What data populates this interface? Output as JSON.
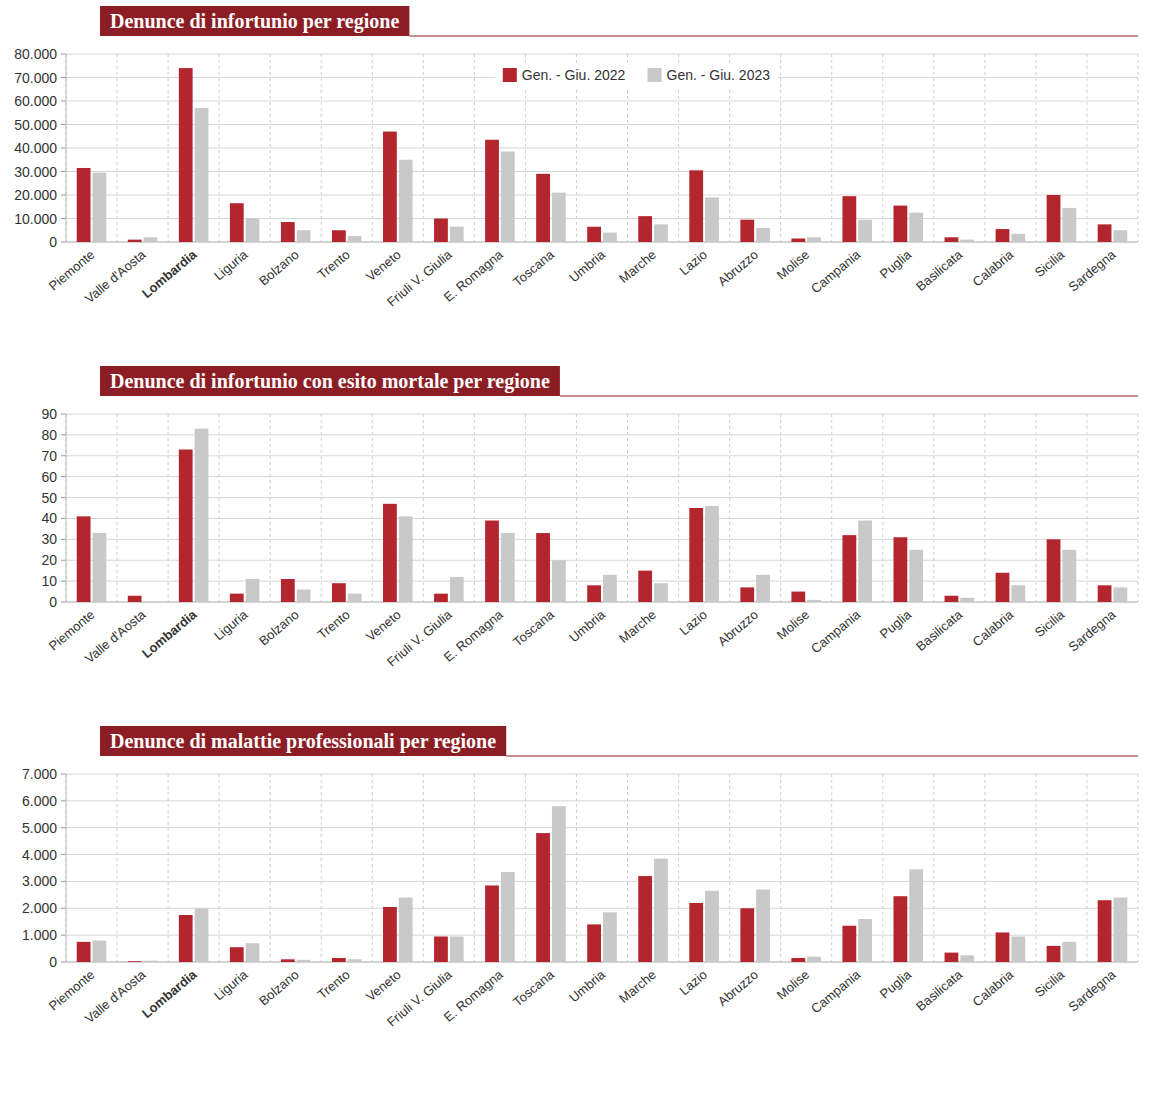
{
  "chart_data": [
    {
      "type": "bar",
      "title": "Denunce di infortunio per regione",
      "categories": [
        "Piemonte",
        "Valle d'Aosta",
        "Lombardia",
        "Liguria",
        "Bolzano",
        "Trento",
        "Veneto",
        "Friuli V. Giulia",
        "E. Romagna",
        "Toscana",
        "Umbria",
        "Marche",
        "Lazio",
        "Abruzzo",
        "Molise",
        "Campania",
        "Puglia",
        "Basilicata",
        "Calabria",
        "Sicilia",
        "Sardegna"
      ],
      "series": [
        {
          "name": "Gen. - Giu. 2022",
          "color": "#b3262e",
          "values": [
            31500,
            1000,
            74000,
            16500,
            8500,
            5000,
            47000,
            10000,
            43500,
            29000,
            6500,
            11000,
            30500,
            9500,
            1500,
            19500,
            15500,
            2000,
            5500,
            20000,
            7500
          ]
        },
        {
          "name": "Gen. - Giu. 2023",
          "color": "#c9c9c9",
          "values": [
            29500,
            2000,
            57000,
            10000,
            5000,
            2500,
            35000,
            6500,
            38500,
            21000,
            4000,
            7500,
            19000,
            6000,
            2000,
            9500,
            12500,
            1000,
            3500,
            14500,
            5000
          ]
        }
      ],
      "ylim": [
        0,
        80000
      ],
      "yticks": [
        0,
        {
          "value": 10000,
          "label": "10.000"
        },
        {
          "value": 20000,
          "label": "20.000"
        },
        {
          "value": 30000,
          "label": "30.000"
        },
        {
          "value": 40000,
          "label": "40.000"
        },
        {
          "value": 50000,
          "label": "50.000"
        },
        {
          "value": 60000,
          "label": "60.000"
        },
        {
          "value": 70000,
          "label": "70.000"
        },
        {
          "value": 80000,
          "label": "80.000"
        }
      ],
      "grid": true,
      "legend": "top"
    },
    {
      "type": "bar",
      "title": "Denunce di infortunio con esito mortale per regione",
      "categories": [
        "Piemonte",
        "Valle d'Aosta",
        "Lombardia",
        "Liguria",
        "Bolzano",
        "Trento",
        "Veneto",
        "Friuli V. Giulia",
        "E. Romagna",
        "Toscana",
        "Umbria",
        "Marche",
        "Lazio",
        "Abruzzo",
        "Molise",
        "Campania",
        "Puglia",
        "Basilicata",
        "Calabria",
        "Sicilia",
        "Sardegna"
      ],
      "series": [
        {
          "color": "#b3262e",
          "values": [
            41,
            3,
            73,
            4,
            11,
            9,
            47,
            4,
            39,
            33,
            8,
            15,
            45,
            7,
            5,
            32,
            31,
            3,
            14,
            30,
            8
          ]
        },
        {
          "color": "#c9c9c9",
          "values": [
            33,
            0,
            83,
            11,
            6,
            4,
            41,
            12,
            33,
            20,
            13,
            9,
            46,
            13,
            1,
            39,
            25,
            2,
            8,
            25,
            7
          ]
        }
      ],
      "ylim": [
        0,
        90
      ],
      "yticks": [
        0,
        10,
        20,
        30,
        40,
        50,
        60,
        70,
        80,
        90
      ],
      "grid": true
    },
    {
      "type": "bar",
      "title": "Denunce di malattie professionali per regione",
      "categories": [
        "Piemonte",
        "Valle d'Aosta",
        "Lombardia",
        "Liguria",
        "Bolzano",
        "Trento",
        "Veneto",
        "Friuli V. Giulia",
        "E. Romagna",
        "Toscana",
        "Umbria",
        "Marche",
        "Lazio",
        "Abruzzo",
        "Molise",
        "Campania",
        "Puglia",
        "Basilicata",
        "Calabria",
        "Sicilia",
        "Sardegna"
      ],
      "series": [
        {
          "color": "#b3262e",
          "values": [
            750,
            30,
            1750,
            550,
            100,
            150,
            2050,
            950,
            2850,
            4800,
            1400,
            3200,
            2200,
            2000,
            150,
            1350,
            2450,
            350,
            1100,
            600,
            2300
          ]
        },
        {
          "color": "#c9c9c9",
          "values": [
            800,
            50,
            2000,
            700,
            80,
            100,
            2400,
            950,
            3350,
            5800,
            1850,
            3850,
            2650,
            2700,
            200,
            1600,
            3450,
            250,
            950,
            750,
            2400
          ]
        }
      ],
      "ylim": [
        0,
        7000
      ],
      "yticks": [
        0,
        {
          "value": 1000,
          "label": "1.000"
        },
        {
          "value": 2000,
          "label": "2.000"
        },
        {
          "value": 3000,
          "label": "3.000"
        },
        {
          "value": 4000,
          "label": "4.000"
        },
        {
          "value": 5000,
          "label": "5.000"
        },
        {
          "value": 6000,
          "label": "6.000"
        },
        {
          "value": 7000,
          "label": "7.000"
        }
      ],
      "grid": true
    }
  ]
}
